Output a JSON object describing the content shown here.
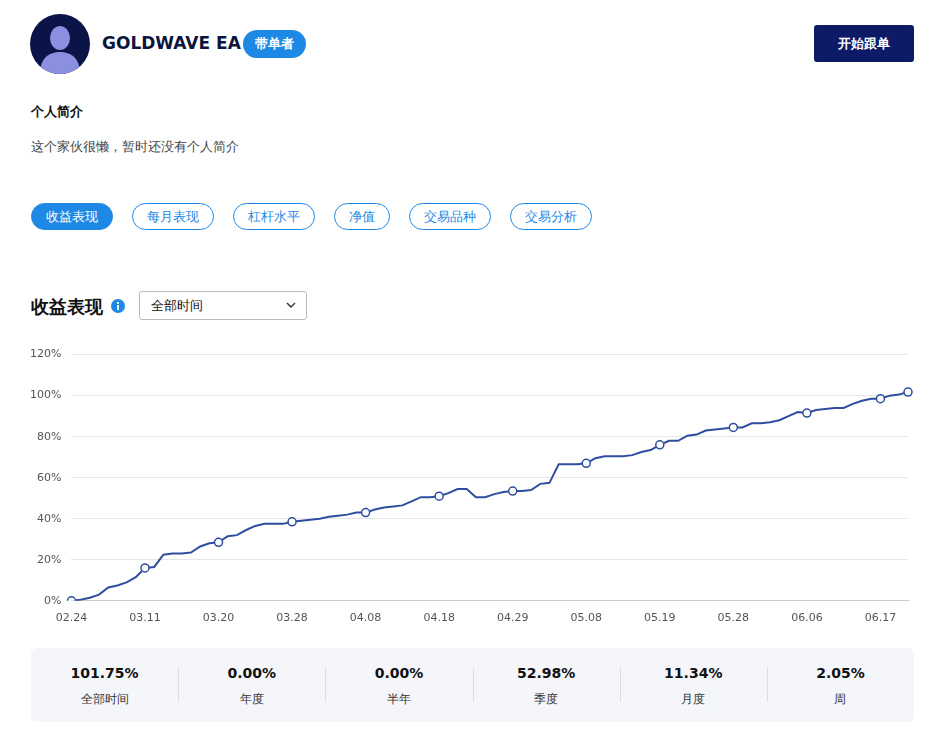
{
  "header": {
    "name": "GOLDWAVE EA",
    "badge": "带单者",
    "button": "开始跟单"
  },
  "profile": {
    "heading": "个人简介",
    "text": "这个家伙很懒，暂时还没有个人简介"
  },
  "tabs": [
    "收益表现",
    "每月表现",
    "杠杆水平",
    "净值",
    "交易品种",
    "交易分析"
  ],
  "period_select": "全部时间",
  "chart_data": {
    "type": "line",
    "title": "收益表现",
    "categories": [
      "02.24",
      null,
      null,
      null,
      null,
      null,
      null,
      null,
      "03.11",
      null,
      null,
      null,
      null,
      null,
      null,
      null,
      "03.20",
      null,
      null,
      null,
      null,
      null,
      null,
      null,
      "03.28",
      null,
      null,
      null,
      null,
      null,
      null,
      null,
      "04.08",
      null,
      null,
      null,
      null,
      null,
      null,
      null,
      "04.18",
      null,
      null,
      null,
      null,
      null,
      null,
      null,
      "04.29",
      null,
      null,
      null,
      null,
      null,
      null,
      null,
      "05.08",
      null,
      null,
      null,
      null,
      null,
      null,
      null,
      "05.19",
      null,
      null,
      null,
      null,
      null,
      null,
      null,
      "05.28",
      null,
      null,
      null,
      null,
      null,
      null,
      null,
      "06.06",
      null,
      null,
      null,
      null,
      null,
      null,
      null,
      "06.17",
      null,
      null,
      null
    ],
    "values": [
      0,
      0.5,
      1.5,
      3,
      6.5,
      7.5,
      9,
      11.5,
      16,
      16.5,
      22.5,
      23,
      23,
      23.5,
      26.5,
      28,
      28.5,
      31.5,
      32,
      34.5,
      36.5,
      37.5,
      37.5,
      37.5,
      38.5,
      39,
      39.5,
      40,
      41,
      41.5,
      42,
      43,
      43,
      44.5,
      45.5,
      46,
      46.5,
      48.5,
      50.5,
      50.5,
      51,
      52.5,
      54.5,
      54.5,
      50.5,
      50.5,
      52,
      53,
      53.5,
      53.5,
      54,
      57,
      57.5,
      66.5,
      66.5,
      66.5,
      67,
      69.5,
      70.5,
      70.5,
      70.5,
      71,
      72.5,
      73.5,
      76,
      78,
      78,
      80.5,
      81,
      83,
      83.5,
      84,
      84.5,
      84.5,
      86.5,
      86.5,
      87,
      88,
      90,
      92,
      91.5,
      93,
      93.5,
      94,
      94,
      96,
      97.5,
      98.5,
      98.5,
      100,
      100.5,
      101.75
    ],
    "color": "#2f4ea0",
    "marker": "circle",
    "ylim": [
      0,
      120
    ],
    "yticks": [
      {
        "value": 0,
        "label": "0%"
      },
      {
        "value": 20,
        "label": "20%"
      },
      {
        "value": 40,
        "label": "40%"
      },
      {
        "value": 60,
        "label": "60%"
      },
      {
        "value": 80,
        "label": "80%"
      },
      {
        "value": 100,
        "label": "100%"
      },
      {
        "value": 120,
        "label": "120%"
      }
    ],
    "grid": true
  },
  "stats": [
    {
      "value": "101.75%",
      "label": "全部时间"
    },
    {
      "value": "0.00%",
      "label": "年度"
    },
    {
      "value": "0.00%",
      "label": "半年"
    },
    {
      "value": "52.98%",
      "label": "季度"
    },
    {
      "value": "11.34%",
      "label": "月度"
    },
    {
      "value": "2.05%",
      "label": "周"
    }
  ]
}
